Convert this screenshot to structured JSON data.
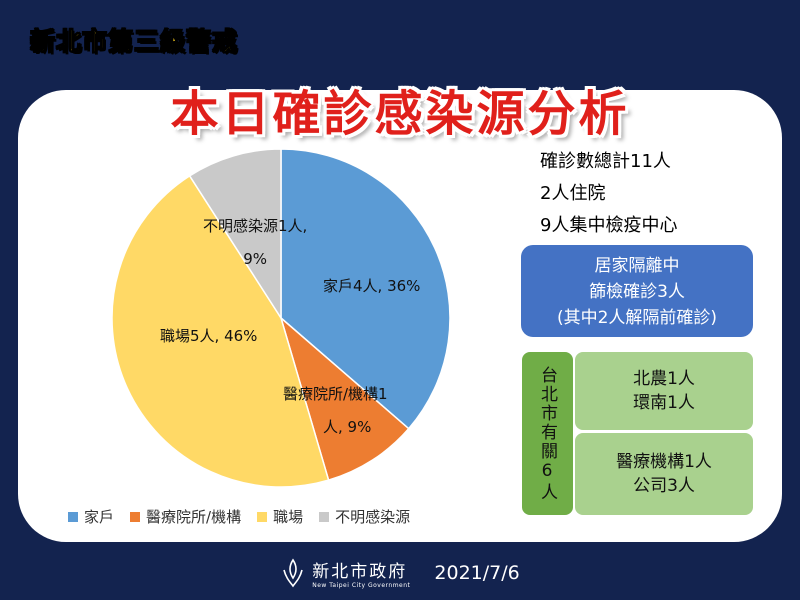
{
  "banner": "新北市第三級警戒",
  "title": "本日確診感染源分析",
  "chart_data": {
    "type": "pie",
    "categories": [
      "家戶",
      "醫療院所/機構",
      "職場",
      "不明感染源"
    ],
    "values": [
      4,
      1,
      5,
      1
    ],
    "percentages": [
      36,
      9,
      46,
      9
    ],
    "colors": [
      "#5b9bd5",
      "#ed7d31",
      "#ffd966",
      "#c9c9c9"
    ],
    "data_labels": [
      {
        "line1": "家戶4人, 36%",
        "line2": ""
      },
      {
        "line1": "醫療院所/機構1",
        "line2": "人, 9%"
      },
      {
        "line1": "職場5人, 46%",
        "line2": ""
      },
      {
        "line1": "不明感染源1人,",
        "line2": "9%"
      }
    ],
    "legend_position": "bottom"
  },
  "legend": [
    "家戶",
    "醫療院所/機構",
    "職場",
    "不明感染源"
  ],
  "stats": {
    "total": "確診數總計11人",
    "hospitalized": "2人住院",
    "quarantine": "9人集中檢疫中心"
  },
  "home_isolation": {
    "line1": "居家隔離中",
    "line2": "篩檢確診3人",
    "line3": "(其中2人解隔前確診)"
  },
  "taipei": {
    "label": "台北市有關6人",
    "box1_line1": "北農1人",
    "box1_line2": "環南1人",
    "box2_line1": "醫療機構1人",
    "box2_line2": "公司3人"
  },
  "footer": {
    "logo_cn": "新北市政府",
    "logo_en": "New Taipei City Government",
    "date": "2021/7/6"
  }
}
